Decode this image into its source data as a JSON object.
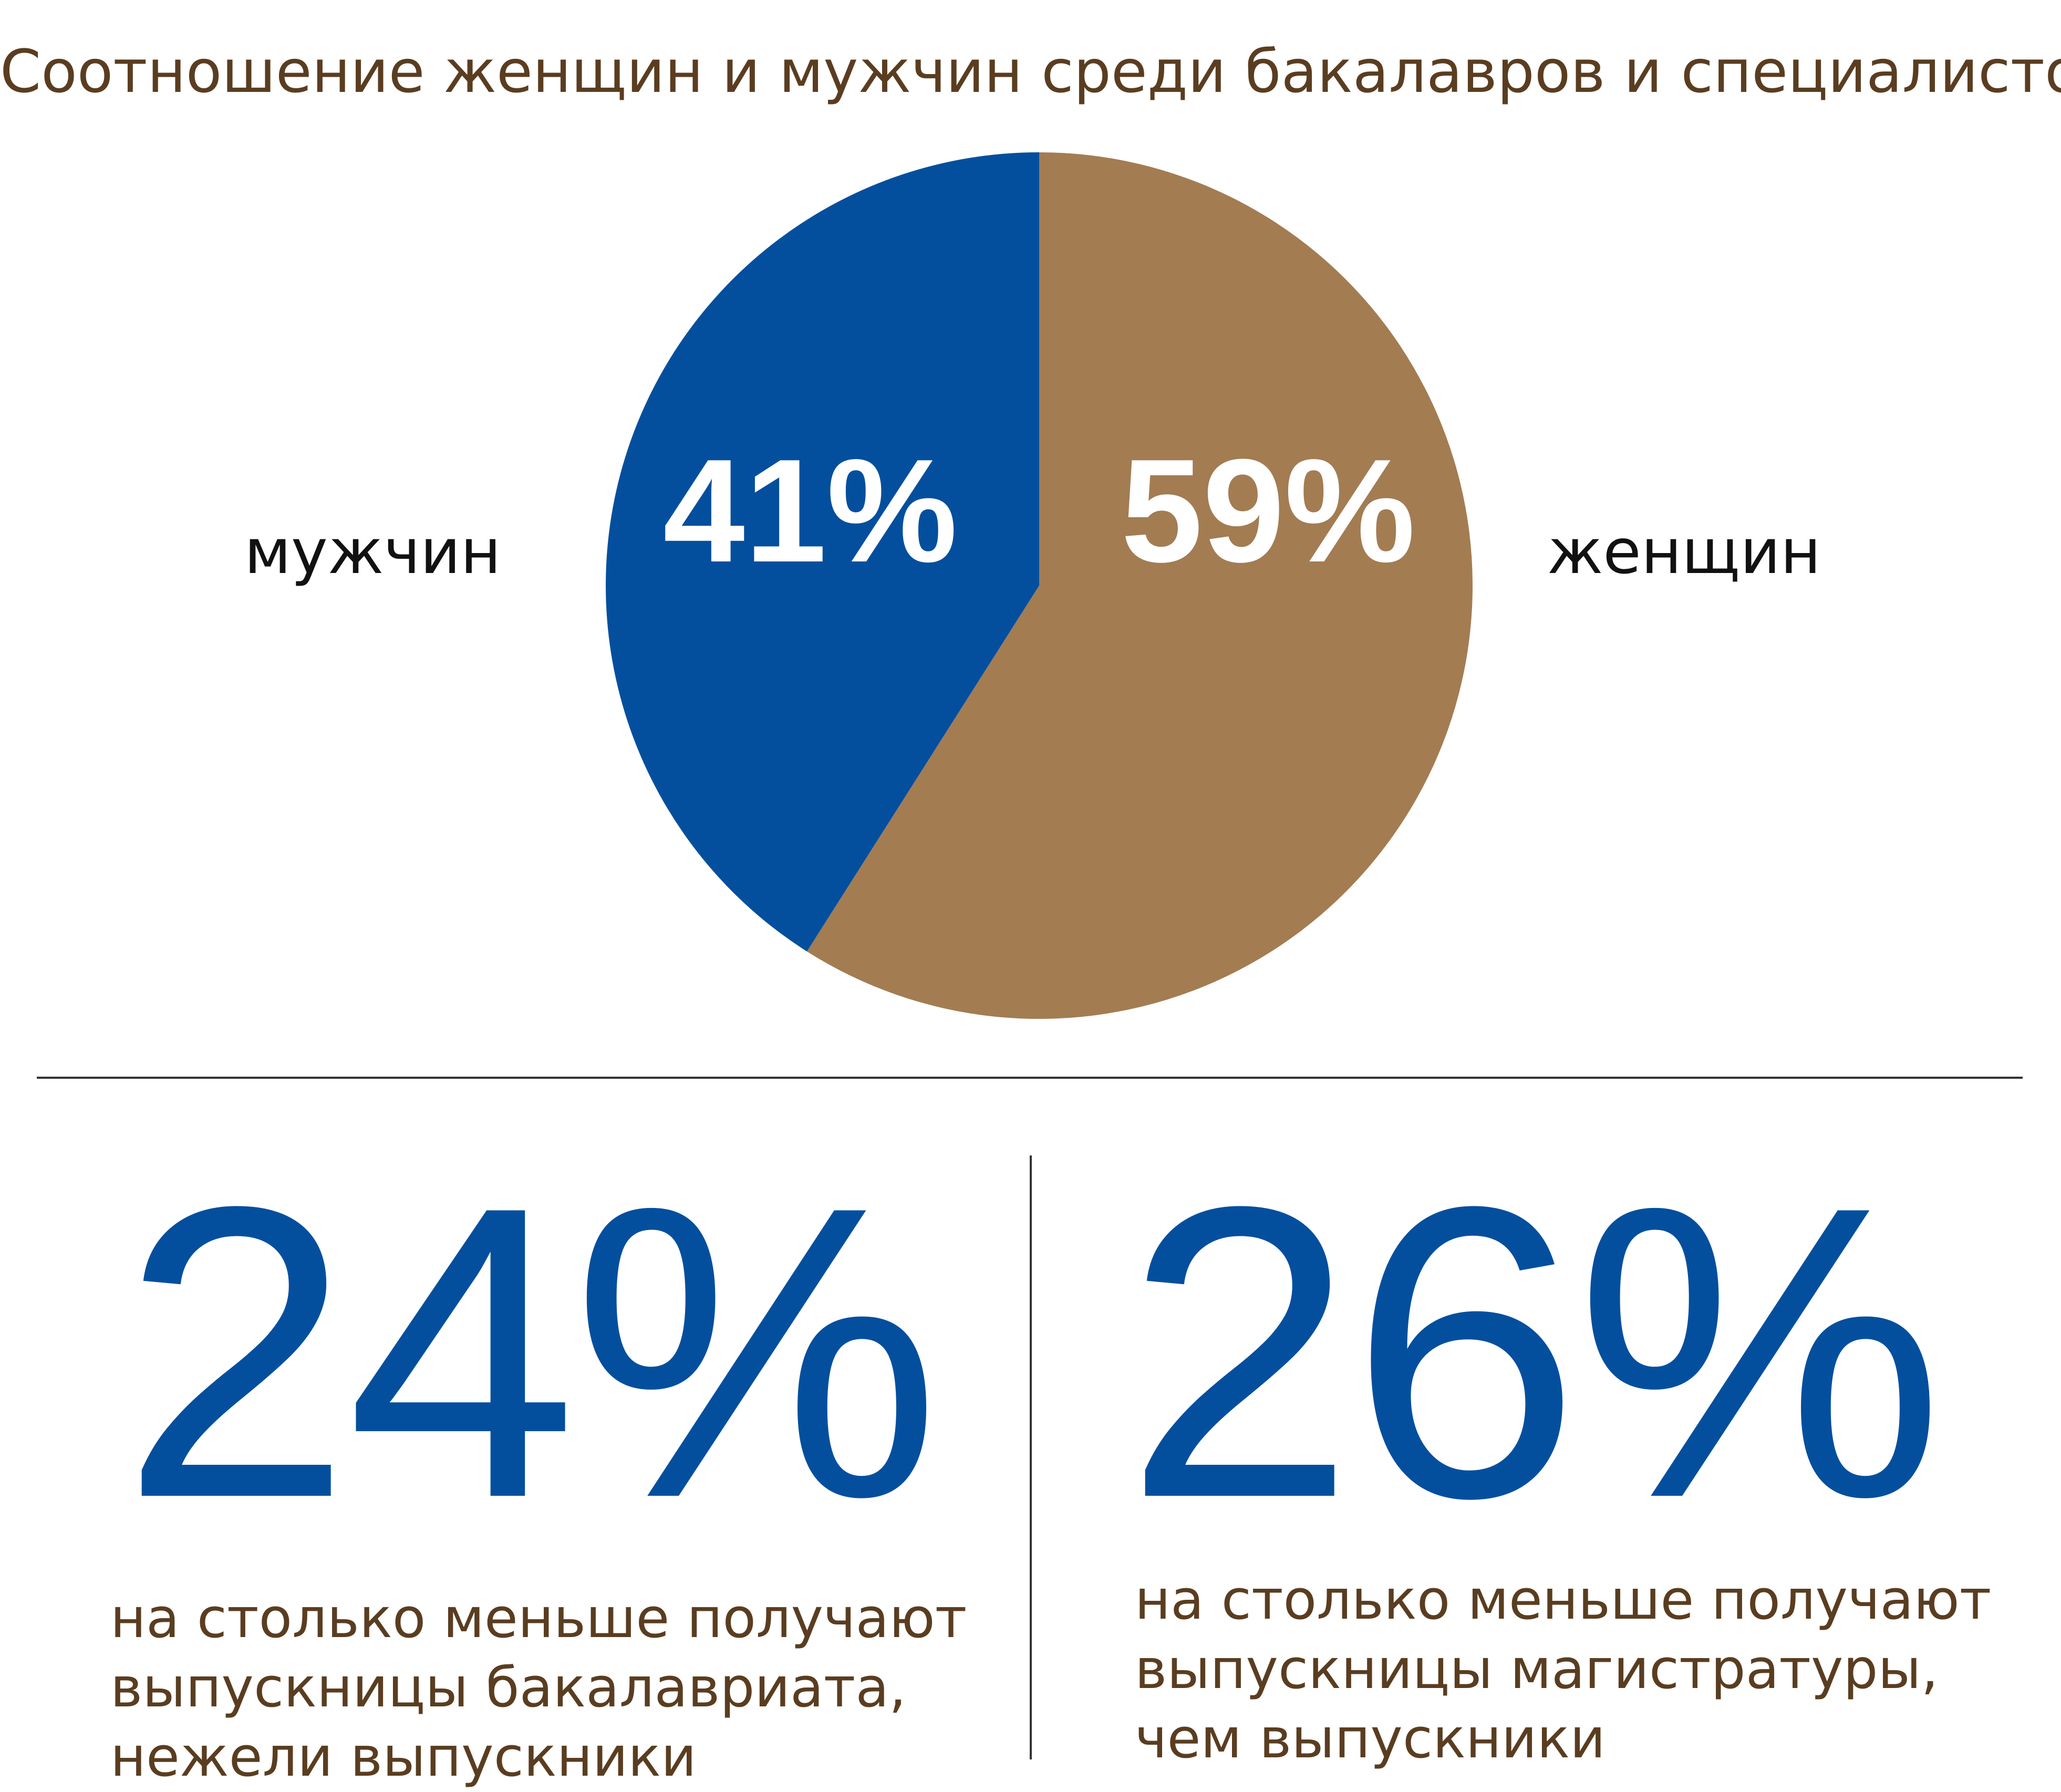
{
  "chart_data": {
    "type": "pie",
    "title": "Соотношение женщин и мужчин среди бакалавров и специалистов",
    "slices": [
      {
        "name": "женщин",
        "value": 59,
        "label": "59%",
        "color": "#a37c52"
      },
      {
        "name": "мужчин",
        "value": 41,
        "label": "41%",
        "color": "#034f9e"
      }
    ]
  },
  "stats": [
    {
      "value": "24%",
      "lines": [
        "на столько меньше получают",
        "выпускницы бакалавриата,",
        "нежели выпускники"
      ]
    },
    {
      "value": "26%",
      "lines": [
        "на столько меньше получают",
        "выпускницы магистратуры,",
        "чем выпускники"
      ]
    }
  ],
  "colors": {
    "accent_blue": "#034f9e",
    "accent_brown": "#a37c52",
    "text_brown": "#5a3d20",
    "divider": "#333333"
  }
}
